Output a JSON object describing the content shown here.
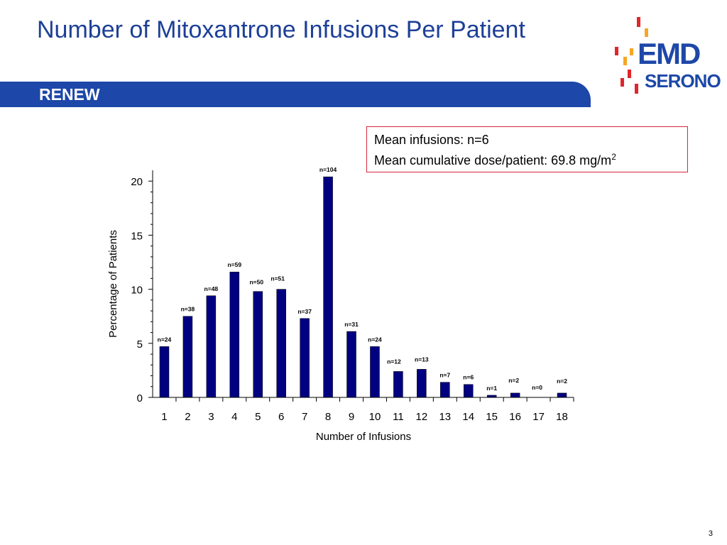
{
  "slide": {
    "title": "Number of Mitoxantrone Infusions Per Patient",
    "banner": "RENEW",
    "page_number": "3"
  },
  "logo": {
    "line1": "EMD",
    "line2": "SERONO",
    "colors": {
      "blue": "#1d47a8",
      "red": "#e0262b",
      "orange": "#f5a623"
    }
  },
  "info_box": {
    "line1": "Mean infusions: n=6",
    "line2_prefix": "Mean cumulative dose/patient: 69.8 mg/m",
    "line2_superscript": "2",
    "border_color": "#d7263d"
  },
  "chart_data": {
    "type": "bar",
    "categories": [
      "1",
      "2",
      "3",
      "4",
      "5",
      "6",
      "7",
      "8",
      "9",
      "10",
      "11",
      "12",
      "13",
      "14",
      "15",
      "16",
      "17",
      "18"
    ],
    "values": [
      4.7,
      7.5,
      9.4,
      11.6,
      9.8,
      10.0,
      7.3,
      20.4,
      6.1,
      4.7,
      2.4,
      2.6,
      1.4,
      1.2,
      0.2,
      0.4,
      0,
      0.4
    ],
    "data_labels": [
      "n=24",
      "n=38",
      "n=48",
      "n=59",
      "n=50",
      "n=51",
      "n=37",
      "n=104",
      "n=31",
      "n=24",
      "n=12",
      "n=13",
      "n=7",
      "n=6",
      "n=1",
      "n=2",
      "n=0",
      "n=2"
    ],
    "xlabel": "Number of Infusions",
    "ylabel": "Percentage of Patients",
    "ylim": [
      0,
      21
    ],
    "yticks": [
      "0",
      "5",
      "10",
      "15",
      "20"
    ],
    "bar_color": "#000080",
    "grid": false,
    "legend": "none"
  }
}
